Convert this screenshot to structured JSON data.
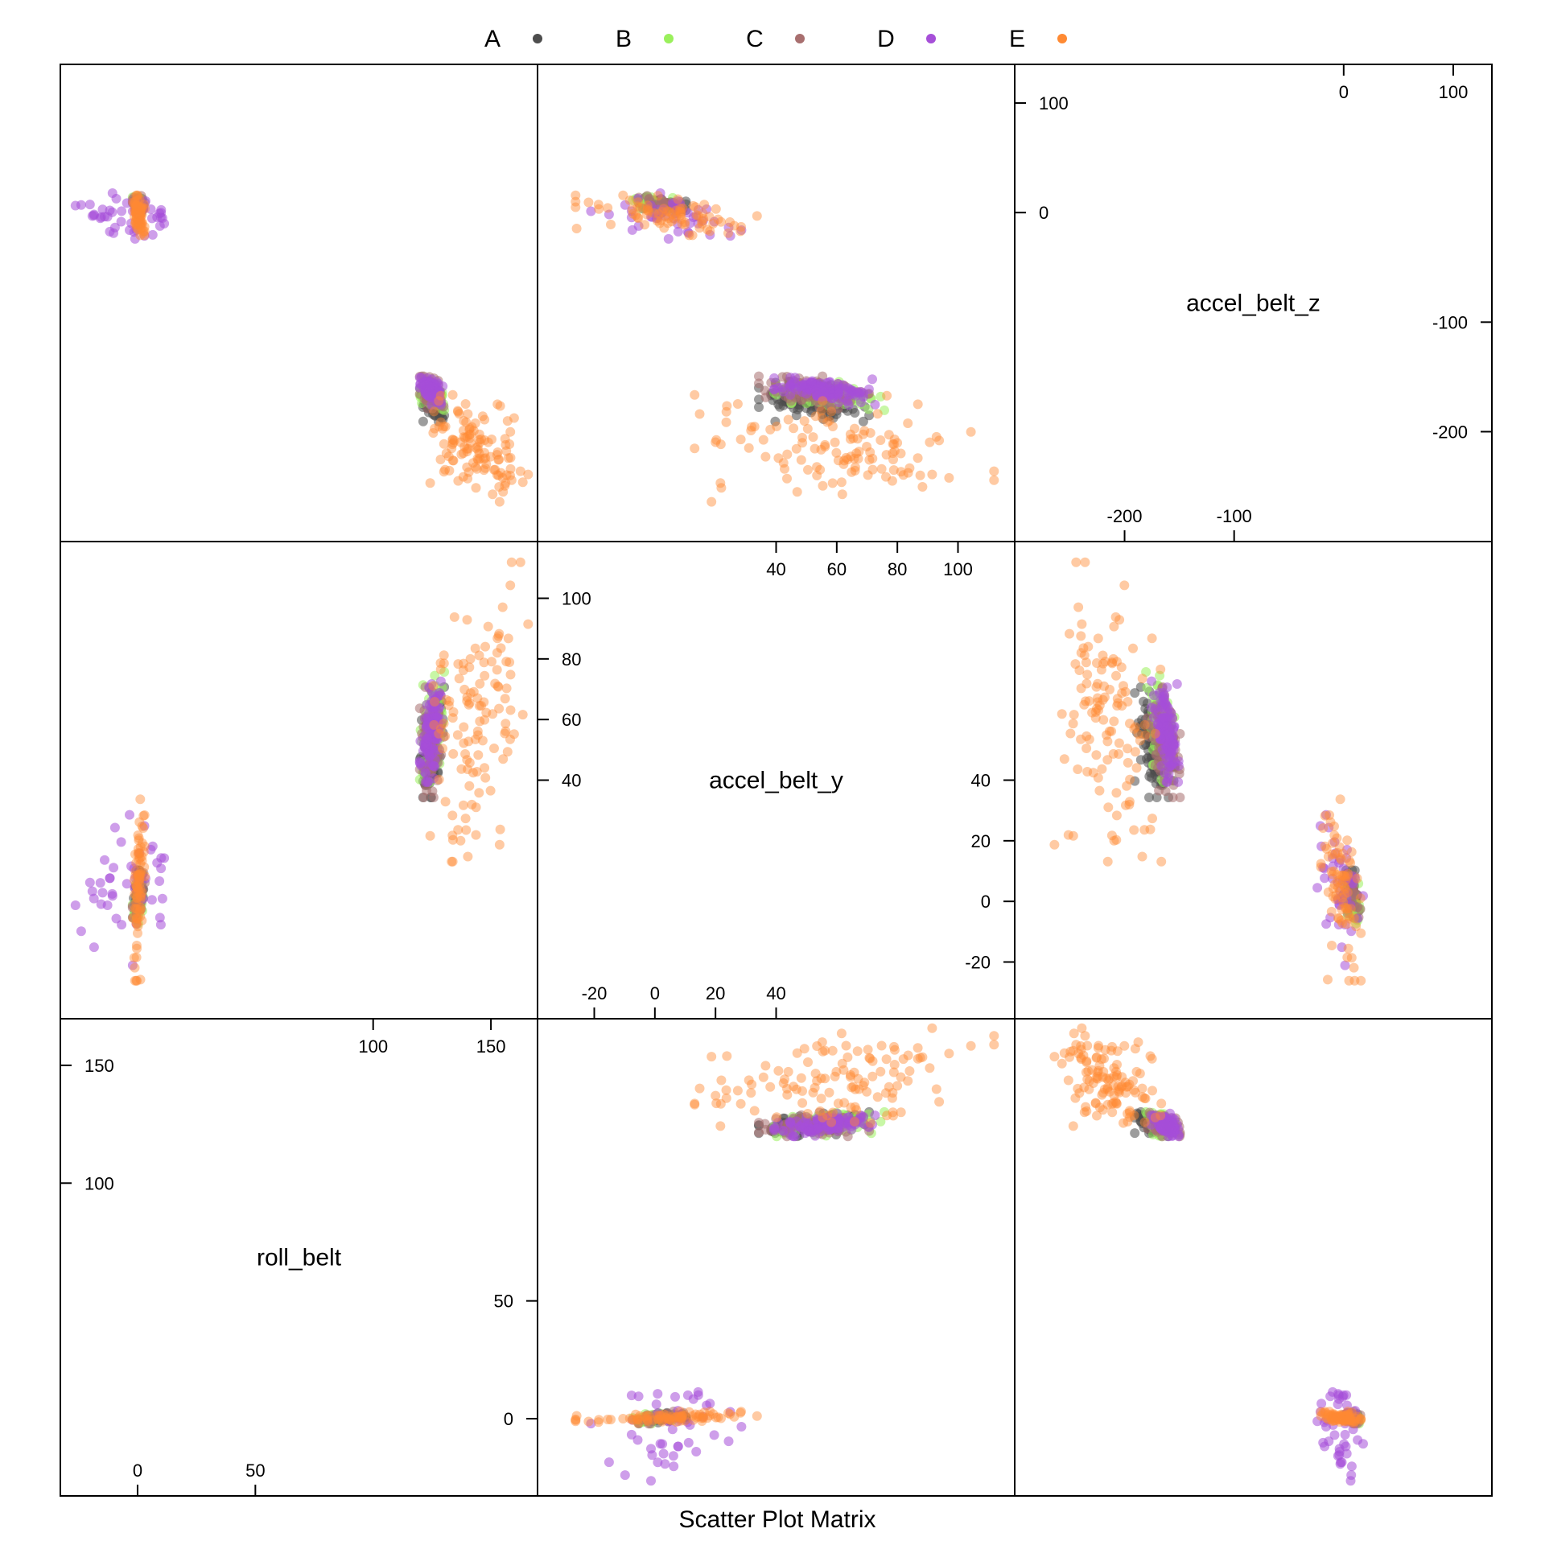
{
  "chart_data": {
    "type": "scatter",
    "subtype": "scatter-plot-matrix",
    "title": "Scatter Plot Matrix",
    "variables": [
      "roll_belt",
      "accel_belt_y",
      "accel_belt_z"
    ],
    "legend": {
      "placement": "top",
      "entries": [
        {
          "name": "A",
          "color": "#4d4d4d"
        },
        {
          "name": "B",
          "color": "#9af05c"
        },
        {
          "name": "C",
          "color": "#a86f6f"
        },
        {
          "name": "D",
          "color": "#a64fd8"
        },
        {
          "name": "E",
          "color": "#ff8a33"
        }
      ]
    },
    "axes": {
      "roll_belt": {
        "range": [
          -28,
          165
        ],
        "ticks": [
          0,
          50,
          100,
          150
        ],
        "tick_labels_side1": [
          "0",
          "50"
        ],
        "tick_labels_side2": [
          "100",
          "150"
        ]
      },
      "accel_belt_y": {
        "range": [
          -35,
          115
        ],
        "ticks": [
          -20,
          0,
          20,
          40,
          60,
          80,
          100
        ],
        "tick_labels_side1": [
          "-20",
          "0",
          "20",
          "40"
        ],
        "tick_labels_side2": [
          "40",
          "60",
          "80",
          "100"
        ]
      },
      "accel_belt_z": {
        "range": [
          -290,
          125
        ],
        "ticks": [
          -200,
          -100,
          0,
          100
        ],
        "tick_labels_side1": [
          "-200",
          "-100"
        ],
        "tick_labels_side2": [
          "0",
          "100"
        ]
      }
    },
    "clusters": [
      {
        "class": "A",
        "roll_belt": [
          120,
          130
        ],
        "accel_belt_y": [
          35,
          70
        ],
        "accel_belt_z": [
          -190,
          -155
        ],
        "n": 140
      },
      {
        "class": "A",
        "roll_belt": [
          -2,
          3
        ],
        "accel_belt_y": [
          -5,
          10
        ],
        "accel_belt_z": [
          0,
          15
        ],
        "n": 40
      },
      {
        "class": "B",
        "roll_belt": [
          120,
          130
        ],
        "accel_belt_y": [
          40,
          75
        ],
        "accel_belt_z": [
          -180,
          -155
        ],
        "n": 80
      },
      {
        "class": "B",
        "roll_belt": [
          -2,
          3
        ],
        "accel_belt_y": [
          -10,
          8
        ],
        "accel_belt_z": [
          0,
          15
        ],
        "n": 30
      },
      {
        "class": "C",
        "roll_belt": [
          120,
          130
        ],
        "accel_belt_y": [
          35,
          70
        ],
        "accel_belt_z": [
          -180,
          -150
        ],
        "n": 80
      },
      {
        "class": "C",
        "roll_belt": [
          -2,
          3
        ],
        "accel_belt_y": [
          -5,
          10
        ],
        "accel_belt_z": [
          0,
          15
        ],
        "n": 30
      },
      {
        "class": "D",
        "roll_belt": [
          120,
          130
        ],
        "accel_belt_y": [
          40,
          72
        ],
        "accel_belt_z": [
          -175,
          -150
        ],
        "n": 110
      },
      {
        "class": "D",
        "roll_belt": [
          -28,
          20
        ],
        "accel_belt_y": [
          -20,
          35
        ],
        "accel_belt_z": [
          -30,
          20
        ],
        "n": 45
      },
      {
        "class": "E",
        "roll_belt": [
          125,
          165
        ],
        "accel_belt_y": [
          15,
          110
        ],
        "accel_belt_z": [
          -265,
          -165
        ],
        "n": 120
      },
      {
        "class": "E",
        "roll_belt": [
          -2,
          3
        ],
        "accel_belt_y": [
          -25,
          33
        ],
        "accel_belt_z": [
          -20,
          15
        ],
        "n": 80
      }
    ]
  }
}
